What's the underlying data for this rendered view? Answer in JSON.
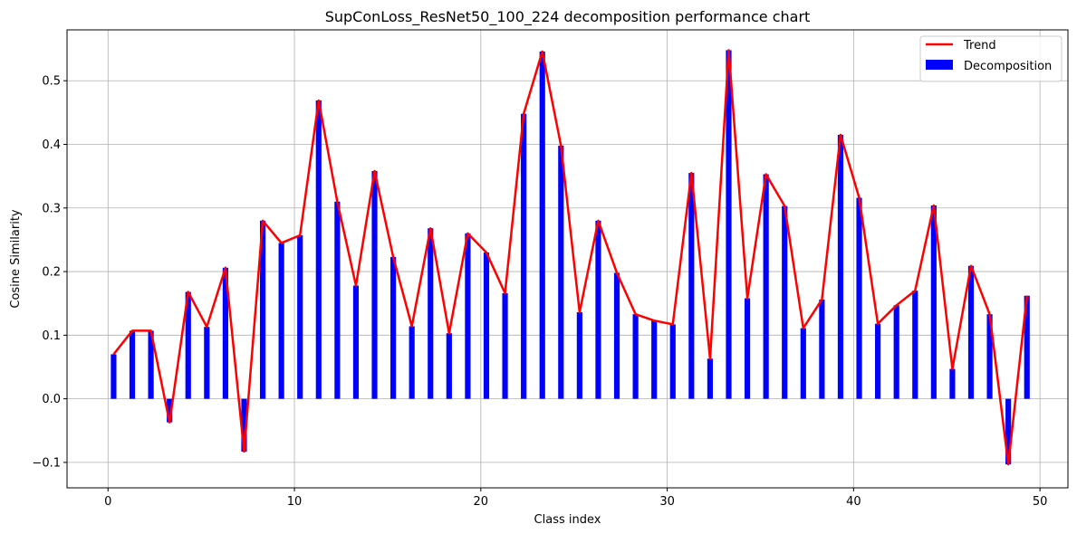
{
  "chart_data": {
    "type": "bar",
    "title": "SupConLoss_ResNet50_100_224 decomposition performance chart",
    "xlabel": "Class index",
    "ylabel": "Cosine Similarity",
    "xlim": [
      -2.2,
      51.5
    ],
    "ylim": [
      -0.14,
      0.58
    ],
    "x_ticks": [
      0,
      10,
      20,
      30,
      40,
      50
    ],
    "y_ticks": [
      -0.1,
      0.0,
      0.1,
      0.2,
      0.3,
      0.4,
      0.5
    ],
    "y_tick_labels": [
      "−0.1",
      "0.0",
      "0.1",
      "0.2",
      "0.3",
      "0.4",
      "0.5"
    ],
    "grid": true,
    "legend_position": "top-right",
    "x": [
      0.3,
      1.3,
      2.3,
      3.3,
      4.3,
      5.3,
      6.3,
      7.3,
      8.3,
      9.3,
      10.3,
      11.3,
      12.3,
      13.3,
      14.3,
      15.3,
      16.3,
      17.3,
      18.3,
      19.3,
      20.3,
      21.3,
      22.3,
      23.3,
      24.3,
      25.3,
      26.3,
      27.3,
      28.3,
      29.3,
      30.3,
      31.3,
      32.3,
      33.3,
      34.3,
      35.3,
      36.3,
      37.3,
      38.3,
      39.3,
      40.3,
      41.3,
      42.3,
      43.3,
      44.3,
      45.3,
      46.3,
      47.3,
      48.3,
      49.3
    ],
    "series": [
      {
        "name": "Decomposition",
        "kind": "bar",
        "color": "#0000ff",
        "values": [
          0.07,
          0.107,
          0.107,
          -0.037,
          0.168,
          0.113,
          0.206,
          -0.083,
          0.28,
          0.245,
          0.257,
          0.469,
          0.31,
          0.178,
          0.358,
          0.223,
          0.114,
          0.268,
          0.103,
          0.26,
          0.23,
          0.166,
          0.448,
          0.546,
          0.398,
          0.136,
          0.28,
          0.198,
          0.133,
          0.123,
          0.117,
          0.355,
          0.063,
          0.548,
          0.158,
          0.353,
          0.303,
          0.111,
          0.156,
          0.415,
          0.316,
          0.118,
          0.147,
          0.17,
          0.304,
          0.047,
          0.209,
          0.133,
          -0.103,
          0.162
        ]
      },
      {
        "name": "Trend",
        "kind": "line",
        "color": "#ff0000",
        "values": [
          0.07,
          0.107,
          0.107,
          -0.037,
          0.168,
          0.113,
          0.206,
          -0.083,
          0.28,
          0.245,
          0.257,
          0.469,
          0.31,
          0.178,
          0.358,
          0.223,
          0.114,
          0.268,
          0.103,
          0.26,
          0.23,
          0.166,
          0.448,
          0.546,
          0.398,
          0.136,
          0.28,
          0.198,
          0.133,
          0.123,
          0.117,
          0.355,
          0.063,
          0.548,
          0.158,
          0.353,
          0.303,
          0.111,
          0.156,
          0.415,
          0.316,
          0.118,
          0.147,
          0.17,
          0.304,
          0.047,
          0.209,
          0.133,
          -0.103,
          0.162
        ]
      }
    ],
    "legend": [
      "Trend",
      "Decomposition"
    ]
  }
}
